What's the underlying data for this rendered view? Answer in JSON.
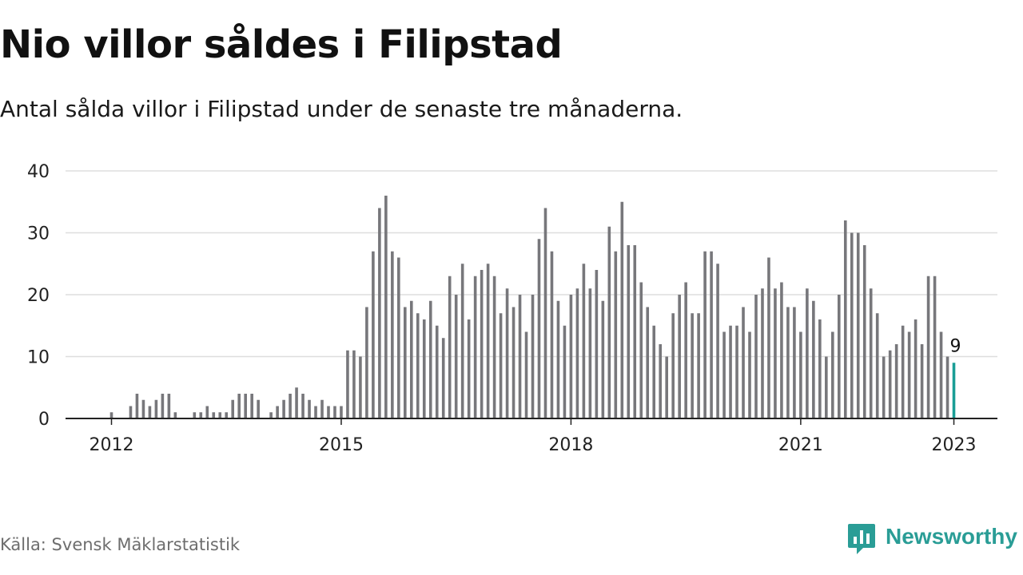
{
  "title": "Nio villor såldes i Filipstad",
  "subtitle": "Antal sålda villor i Filipstad under de senaste tre månaderna.",
  "source": "Källa: Svensk Mäklarstatistik",
  "brand": {
    "name": "Newsworthy",
    "color": "#2a9d96",
    "icon": "newsworthy-logo-icon"
  },
  "colors": {
    "bar": "#77777b",
    "highlight": "#1a9e96",
    "grid": "#dedede",
    "axis": "#222222"
  },
  "chart_data": {
    "type": "bar",
    "title": "Nio villor såldes i Filipstad",
    "subtitle": "Antal sålda villor i Filipstad under de senaste tre månaderna.",
    "xlabel": "",
    "ylabel": "",
    "ylim": [
      0,
      40
    ],
    "yticks": [
      0,
      10,
      20,
      30,
      40
    ],
    "xticks": [
      "2012",
      "2015",
      "2018",
      "2021",
      "2023"
    ],
    "grid": true,
    "x_start": "2012-01",
    "x": [
      "2012-01",
      "2012-02",
      "2012-03",
      "2012-04",
      "2012-05",
      "2012-06",
      "2012-07",
      "2012-08",
      "2012-09",
      "2012-10",
      "2012-11",
      "2012-12",
      "2013-01",
      "2013-02",
      "2013-03",
      "2013-04",
      "2013-05",
      "2013-06",
      "2013-07",
      "2013-08",
      "2013-09",
      "2013-10",
      "2013-11",
      "2013-12",
      "2014-01",
      "2014-02",
      "2014-03",
      "2014-04",
      "2014-05",
      "2014-06",
      "2014-07",
      "2014-08",
      "2014-09",
      "2014-10",
      "2014-11",
      "2014-12",
      "2015-01",
      "2015-02",
      "2015-03",
      "2015-04",
      "2015-05",
      "2015-06",
      "2015-07",
      "2015-08",
      "2015-09",
      "2015-10",
      "2015-11",
      "2015-12",
      "2016-01",
      "2016-02",
      "2016-03",
      "2016-04",
      "2016-05",
      "2016-06",
      "2016-07",
      "2016-08",
      "2016-09",
      "2016-10",
      "2016-11",
      "2016-12",
      "2017-01",
      "2017-02",
      "2017-03",
      "2017-04",
      "2017-05",
      "2017-06",
      "2017-07",
      "2017-08",
      "2017-09",
      "2017-10",
      "2017-11",
      "2017-12",
      "2018-01",
      "2018-02",
      "2018-03",
      "2018-04",
      "2018-05",
      "2018-06",
      "2018-07",
      "2018-08",
      "2018-09",
      "2018-10",
      "2018-11",
      "2018-12",
      "2019-01",
      "2019-02",
      "2019-03",
      "2019-04",
      "2019-05",
      "2019-06",
      "2019-07",
      "2019-08",
      "2019-09",
      "2019-10",
      "2019-11",
      "2019-12",
      "2020-01",
      "2020-02",
      "2020-03",
      "2020-04",
      "2020-05",
      "2020-06",
      "2020-07",
      "2020-08",
      "2020-09",
      "2020-10",
      "2020-11",
      "2020-12",
      "2021-01",
      "2021-02",
      "2021-03",
      "2021-04",
      "2021-05",
      "2021-06",
      "2021-07",
      "2021-08",
      "2021-09",
      "2021-10",
      "2021-11",
      "2021-12",
      "2022-01",
      "2022-02",
      "2022-03",
      "2022-04",
      "2022-05",
      "2022-06",
      "2022-07",
      "2022-08",
      "2022-09",
      "2022-10",
      "2022-11",
      "2022-12",
      "2023-01"
    ],
    "values": [
      1,
      0,
      0,
      2,
      4,
      3,
      2,
      3,
      4,
      4,
      1,
      0,
      0,
      1,
      1,
      2,
      1,
      1,
      1,
      3,
      4,
      4,
      4,
      3,
      0,
      1,
      2,
      3,
      4,
      5,
      4,
      3,
      2,
      3,
      2,
      2,
      2,
      11,
      11,
      10,
      18,
      27,
      34,
      36,
      27,
      26,
      18,
      19,
      17,
      16,
      19,
      15,
      13,
      23,
      20,
      25,
      16,
      23,
      24,
      25,
      23,
      17,
      21,
      18,
      20,
      14,
      20,
      29,
      34,
      27,
      19,
      15,
      20,
      21,
      25,
      21,
      24,
      19,
      31,
      27,
      35,
      28,
      28,
      22,
      18,
      15,
      12,
      10,
      17,
      20,
      22,
      17,
      17,
      27,
      27,
      25,
      14,
      15,
      15,
      18,
      14,
      20,
      21,
      26,
      21,
      22,
      18,
      18,
      14,
      21,
      19,
      16,
      10,
      14,
      20,
      32,
      30,
      30,
      28,
      21,
      17,
      10,
      11,
      12,
      15,
      14,
      16,
      12,
      23,
      23,
      14,
      10,
      9
    ],
    "highlight_index": 132,
    "annotations": [
      {
        "label": "9",
        "x": "2023-01",
        "y": 9
      }
    ],
    "legend": "none"
  }
}
